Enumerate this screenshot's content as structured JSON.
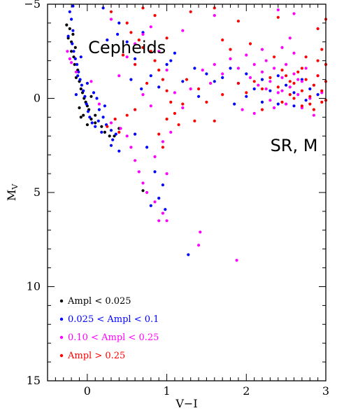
{
  "chart_data": {
    "type": "scatter",
    "xlabel": "V−I",
    "ylabel_main": "M",
    "ylabel_sub": "V",
    "xlim": [
      -0.5,
      3.0
    ],
    "ylim": [
      15,
      -5
    ],
    "xticks": [
      0,
      1,
      2,
      3
    ],
    "yticks": [
      -5,
      0,
      5,
      10,
      15
    ],
    "xtick_labels": [
      "0",
      "1",
      "2",
      "3"
    ],
    "ytick_labels": [
      "−5",
      "0",
      "5",
      "10",
      "15"
    ],
    "grid": false,
    "legend_placement": "bottom-left",
    "annotations": [
      {
        "text": "Cepheids",
        "x": 0.5,
        "y": -2.7
      },
      {
        "text": "SR, M",
        "x": 2.6,
        "y": 2.5
      }
    ],
    "series": [
      {
        "name": "Ampl < 0.025",
        "color": "#000000",
        "points": [
          [
            -0.26,
            -3.9
          ],
          [
            -0.22,
            -3.7
          ],
          [
            -0.18,
            -3.4
          ],
          [
            -0.2,
            -3.0
          ],
          [
            -0.15,
            -2.7
          ],
          [
            -0.17,
            -2.2
          ],
          [
            -0.16,
            -1.8
          ],
          [
            -0.12,
            -1.5
          ],
          [
            -0.14,
            -1.1
          ],
          [
            -0.1,
            -0.9
          ],
          [
            -0.08,
            -0.5
          ],
          [
            -0.06,
            -0.3
          ],
          [
            -0.04,
            0.0
          ],
          [
            -0.02,
            0.2
          ],
          [
            0.0,
            0.4
          ],
          [
            0.02,
            0.6
          ],
          [
            -0.05,
            0.9
          ],
          [
            0.05,
            1.1
          ],
          [
            0.1,
            1.3
          ],
          [
            0.18,
            1.5
          ],
          [
            0.22,
            1.8
          ],
          [
            0.28,
            2.0
          ],
          [
            0.34,
            2.0
          ],
          [
            0.4,
            1.6
          ],
          [
            0.1,
            0.9
          ],
          [
            0.0,
            1.4
          ],
          [
            -0.1,
            0.5
          ],
          [
            -0.2,
            -2.5
          ],
          [
            -0.24,
            -3.2
          ],
          [
            0.7,
            4.9
          ],
          [
            0.05,
            -0.1
          ],
          [
            -0.08,
            1.0
          ]
        ]
      },
      {
        "name": "0.025 < Ampl < 0.1",
        "color": "#0000ff",
        "points": [
          [
            -0.22,
            -4.6
          ],
          [
            -0.18,
            -4.9
          ],
          [
            -0.2,
            -4.2
          ],
          [
            -0.24,
            -3.3
          ],
          [
            -0.19,
            -2.9
          ],
          [
            -0.17,
            -2.5
          ],
          [
            -0.15,
            -2.1
          ],
          [
            -0.13,
            -1.8
          ],
          [
            -0.11,
            -1.4
          ],
          [
            -0.09,
            -1.0
          ],
          [
            -0.07,
            -0.7
          ],
          [
            -0.05,
            -0.4
          ],
          [
            -0.03,
            -0.1
          ],
          [
            -0.01,
            0.3
          ],
          [
            0.01,
            0.7
          ],
          [
            0.03,
            1.0
          ],
          [
            0.06,
            1.3
          ],
          [
            0.1,
            1.5
          ],
          [
            0.14,
            1.2
          ],
          [
            0.2,
            1.0
          ],
          [
            0.24,
            1.4
          ],
          [
            0.3,
            1.7
          ],
          [
            0.36,
            1.9
          ],
          [
            0.15,
            0.6
          ],
          [
            0.22,
            0.4
          ],
          [
            -0.18,
            -3.6
          ],
          [
            -0.12,
            -1.2
          ],
          [
            -0.08,
            -2.2
          ],
          [
            0.08,
            -0.3
          ],
          [
            0.12,
            0.0
          ],
          [
            0.4,
            -4.0
          ],
          [
            0.5,
            -3.0
          ],
          [
            0.38,
            -3.4
          ],
          [
            0.6,
            -2.1
          ],
          [
            0.55,
            -1.0
          ],
          [
            0.68,
            -0.5
          ],
          [
            0.8,
            -1.2
          ],
          [
            0.9,
            -0.6
          ],
          [
            1.0,
            -1.8
          ],
          [
            1.1,
            -2.4
          ],
          [
            1.2,
            -0.9
          ],
          [
            1.35,
            -1.6
          ],
          [
            1.5,
            -1.3
          ],
          [
            1.7,
            -1.1
          ],
          [
            1.8,
            -1.6
          ],
          [
            1.9,
            -0.8
          ],
          [
            2.0,
            -1.3
          ],
          [
            2.1,
            -0.5
          ],
          [
            2.2,
            -1.0
          ],
          [
            2.3,
            -0.4
          ],
          [
            2.4,
            -1.2
          ],
          [
            2.5,
            -0.7
          ],
          [
            2.6,
            -0.3
          ],
          [
            2.7,
            -1.0
          ],
          [
            2.8,
            -0.5
          ],
          [
            2.9,
            -0.2
          ],
          [
            2.2,
            0.2
          ],
          [
            2.4,
            0.3
          ],
          [
            0.75,
            2.6
          ],
          [
            0.85,
            3.9
          ],
          [
            0.95,
            4.6
          ],
          [
            0.9,
            5.3
          ],
          [
            0.8,
            5.7
          ],
          [
            0.98,
            5.9
          ],
          [
            1.27,
            8.3
          ],
          [
            0.4,
            2.8
          ],
          [
            0.3,
            2.5
          ],
          [
            0.6,
            1.9
          ],
          [
            0.25,
            -3.1
          ],
          [
            0.2,
            -4.8
          ],
          [
            0.7,
            -3.5
          ],
          [
            1.05,
            -2.0
          ],
          [
            1.4,
            -0.1
          ],
          [
            1.6,
            -0.9
          ],
          [
            2.6,
            0.4
          ],
          [
            2.75,
            0.1
          ],
          [
            2.0,
            -0.1
          ],
          [
            1.85,
            0.3
          ],
          [
            -0.14,
            -0.2
          ],
          [
            0.0,
            -0.8
          ],
          [
            0.18,
            1.8
          ],
          [
            0.32,
            2.2
          ]
        ]
      },
      {
        "name": "0.10 < Ampl < 0.25",
        "color": "#ff00ff",
        "points": [
          [
            -0.25,
            -2.5
          ],
          [
            -0.2,
            -1.9
          ],
          [
            -0.22,
            -2.1
          ],
          [
            -0.14,
            -1.4
          ],
          [
            0.05,
            -0.9
          ],
          [
            0.15,
            0.3
          ],
          [
            0.3,
            1.3
          ],
          [
            0.42,
            1.6
          ],
          [
            0.5,
            2.0
          ],
          [
            0.55,
            2.6
          ],
          [
            0.6,
            3.3
          ],
          [
            0.65,
            3.9
          ],
          [
            0.7,
            4.5
          ],
          [
            0.75,
            5.0
          ],
          [
            0.85,
            5.5
          ],
          [
            0.95,
            6.1
          ],
          [
            1.0,
            6.5
          ],
          [
            0.9,
            6.5
          ],
          [
            1.42,
            7.1
          ],
          [
            1.4,
            7.8
          ],
          [
            1.88,
            8.6
          ],
          [
            0.4,
            -1.2
          ],
          [
            0.5,
            -2.2
          ],
          [
            0.6,
            -2.9
          ],
          [
            0.7,
            -3.4
          ],
          [
            0.8,
            -3.8
          ],
          [
            0.9,
            -2.5
          ],
          [
            1.0,
            -1.5
          ],
          [
            1.1,
            -0.3
          ],
          [
            1.2,
            0.5
          ],
          [
            1.3,
            -0.5
          ],
          [
            1.45,
            -1.5
          ],
          [
            1.55,
            -0.8
          ],
          [
            1.6,
            -1.8
          ],
          [
            1.7,
            -1.3
          ],
          [
            1.8,
            -2.1
          ],
          [
            1.9,
            -1.6
          ],
          [
            2.0,
            -2.3
          ],
          [
            2.05,
            -1.1
          ],
          [
            2.1,
            -1.8
          ],
          [
            2.15,
            -0.7
          ],
          [
            2.2,
            -1.4
          ],
          [
            2.25,
            -2.0
          ],
          [
            2.3,
            -0.9
          ],
          [
            2.35,
            -1.6
          ],
          [
            2.4,
            -0.3
          ],
          [
            2.45,
            -1.1
          ],
          [
            2.5,
            -1.8
          ],
          [
            2.55,
            -0.6
          ],
          [
            2.6,
            -1.3
          ],
          [
            2.65,
            -0.2
          ],
          [
            2.7,
            -0.9
          ],
          [
            2.75,
            -1.6
          ],
          [
            2.8,
            0.0
          ],
          [
            2.85,
            -0.7
          ],
          [
            2.9,
            -1.2
          ],
          [
            2.95,
            -0.3
          ],
          [
            2.3,
            0.1
          ],
          [
            2.5,
            0.3
          ],
          [
            2.7,
            0.5
          ],
          [
            2.2,
            -2.6
          ],
          [
            2.45,
            -2.7
          ],
          [
            2.6,
            -2.4
          ],
          [
            1.95,
            0.6
          ],
          [
            2.1,
            0.8
          ],
          [
            2.85,
            0.9
          ],
          [
            2.4,
            -4.7
          ],
          [
            2.6,
            -4.5
          ],
          [
            2.55,
            -3.2
          ],
          [
            1.6,
            -4.4
          ],
          [
            1.2,
            -3.6
          ],
          [
            0.3,
            -4.2
          ],
          [
            0.8,
            0.4
          ],
          [
            0.7,
            -0.2
          ],
          [
            1.05,
            1.8
          ],
          [
            0.95,
            2.3
          ],
          [
            0.85,
            3.1
          ],
          [
            1.0,
            4.0
          ],
          [
            2.45,
            -0.4
          ],
          [
            2.25,
            -0.5
          ],
          [
            2.65,
            -1.0
          ],
          [
            2.35,
            0.5
          ]
        ]
      },
      {
        "name": "Ampl > 0.25",
        "color": "#ff0000",
        "points": [
          [
            0.3,
            -4.6
          ],
          [
            0.5,
            -4.0
          ],
          [
            0.55,
            -3.5
          ],
          [
            0.65,
            -3.1
          ],
          [
            0.7,
            -2.7
          ],
          [
            0.8,
            -2.5
          ],
          [
            0.85,
            -2.0
          ],
          [
            0.9,
            -1.5
          ],
          [
            0.95,
            -1.0
          ],
          [
            1.0,
            -0.4
          ],
          [
            1.05,
            0.2
          ],
          [
            1.1,
            0.8
          ],
          [
            1.15,
            1.4
          ],
          [
            0.9,
            1.9
          ],
          [
            0.95,
            2.6
          ],
          [
            1.0,
            1.1
          ],
          [
            0.6,
            -1.8
          ],
          [
            0.45,
            -2.3
          ],
          [
            0.75,
            -0.8
          ],
          [
            0.35,
            1.1
          ],
          [
            0.4,
            1.8
          ],
          [
            0.25,
            1.5
          ],
          [
            1.25,
            -1.0
          ],
          [
            1.4,
            -0.5
          ],
          [
            1.5,
            0.2
          ],
          [
            1.6,
            1.2
          ],
          [
            1.7,
            -0.2
          ],
          [
            1.9,
            -0.8
          ],
          [
            2.0,
            -0.3
          ],
          [
            2.1,
            -0.9
          ],
          [
            2.2,
            -0.5
          ],
          [
            2.3,
            -1.1
          ],
          [
            2.4,
            -0.6
          ],
          [
            2.5,
            -1.2
          ],
          [
            2.55,
            -0.2
          ],
          [
            2.6,
            -0.8
          ],
          [
            2.65,
            -1.4
          ],
          [
            2.7,
            -0.4
          ],
          [
            2.75,
            -1.0
          ],
          [
            2.8,
            -0.1
          ],
          [
            2.85,
            -0.7
          ],
          [
            2.9,
            -1.2
          ],
          [
            2.95,
            -0.4
          ],
          [
            3.0,
            -0.9
          ],
          [
            2.8,
            0.3
          ],
          [
            2.95,
            0.2
          ],
          [
            2.7,
            0.4
          ],
          [
            2.85,
            0.6
          ],
          [
            3.0,
            0.1
          ],
          [
            2.9,
            -2.0
          ],
          [
            2.75,
            -2.2
          ],
          [
            3.0,
            -1.8
          ],
          [
            2.95,
            -2.6
          ],
          [
            3.0,
            -4.2
          ],
          [
            2.9,
            -3.7
          ],
          [
            1.3,
            -4.6
          ],
          [
            1.6,
            -4.8
          ],
          [
            1.9,
            -4.1
          ],
          [
            1.7,
            -3.1
          ],
          [
            2.4,
            -4.3
          ],
          [
            0.7,
            -4.8
          ],
          [
            0.85,
            -4.4
          ],
          [
            1.0,
            -3.2
          ],
          [
            0.6,
            0.6
          ],
          [
            0.5,
            0.9
          ],
          [
            1.2,
            0.3
          ],
          [
            1.35,
            1.2
          ],
          [
            2.2,
            0.6
          ],
          [
            2.45,
            0.2
          ],
          [
            2.35,
            -2.2
          ],
          [
            1.8,
            -2.6
          ],
          [
            2.05,
            -2.9
          ],
          [
            2.6,
            0.0
          ],
          [
            2.45,
            -1.5
          ],
          [
            2.55,
            -0.9
          ],
          [
            2.7,
            -1.6
          ]
        ]
      }
    ]
  }
}
